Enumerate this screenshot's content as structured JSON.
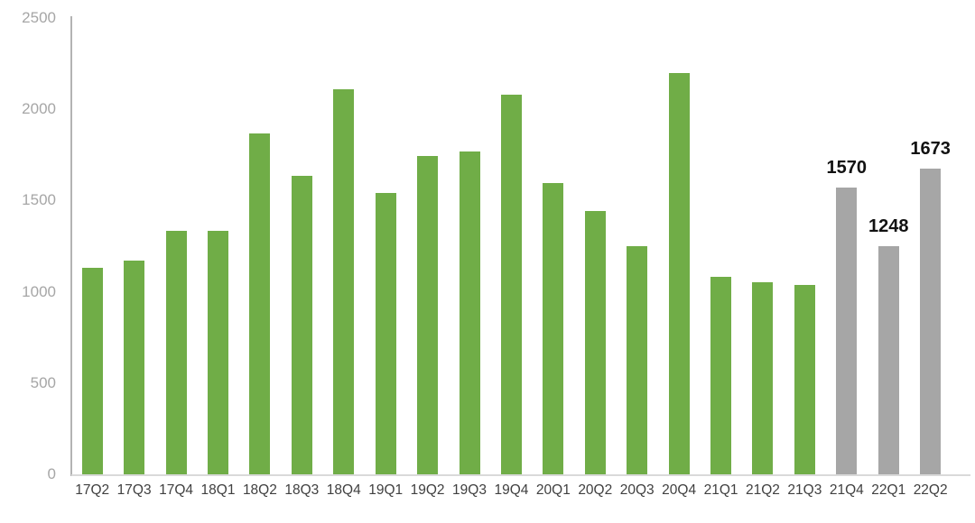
{
  "chart_data": {
    "type": "bar",
    "title": "",
    "xlabel": "",
    "ylabel": "",
    "categories": [
      "17Q2",
      "17Q3",
      "17Q4",
      "18Q1",
      "18Q2",
      "18Q3",
      "18Q4",
      "19Q1",
      "19Q2",
      "19Q3",
      "19Q4",
      "20Q1",
      "20Q2",
      "20Q3",
      "20Q4",
      "21Q1",
      "21Q2",
      "21Q3",
      "21Q4",
      "22Q1",
      "22Q2"
    ],
    "values": [
      1130,
      1170,
      1335,
      1335,
      1870,
      1635,
      2110,
      1540,
      1745,
      1770,
      2080,
      1595,
      1445,
      1250,
      2200,
      1080,
      1050,
      1040,
      1570,
      1248,
      1673
    ],
    "bar_color_keys": [
      "green",
      "green",
      "green",
      "green",
      "green",
      "green",
      "green",
      "green",
      "green",
      "green",
      "green",
      "green",
      "green",
      "green",
      "green",
      "green",
      "green",
      "green",
      "gray",
      "gray",
      "gray"
    ],
    "data_labels": [
      "",
      "",
      "",
      "",
      "",
      "",
      "",
      "",
      "",
      "",
      "",
      "",
      "",
      "",
      "",
      "",
      "",
      "",
      "1570",
      "1248",
      "1673"
    ],
    "palette": {
      "green": "#70ad47",
      "gray": "#a6a6a6"
    },
    "ylim": [
      0,
      2500
    ],
    "yticks": [
      "0",
      "500",
      "1000",
      "1500",
      "2000",
      "2500"
    ],
    "ytick_values": [
      0,
      500,
      1000,
      1500,
      2000,
      2500
    ],
    "grid": "off",
    "legend": "none",
    "axis_styles": {
      "y_tick_label_color": "#a6a6a6",
      "x_tick_label_color": "#404040",
      "data_label_color": "#111111",
      "vertical_axis_line_color": "#b3b3b3",
      "baseline_color": "#d9d9d9",
      "background": "#ffffff"
    }
  }
}
